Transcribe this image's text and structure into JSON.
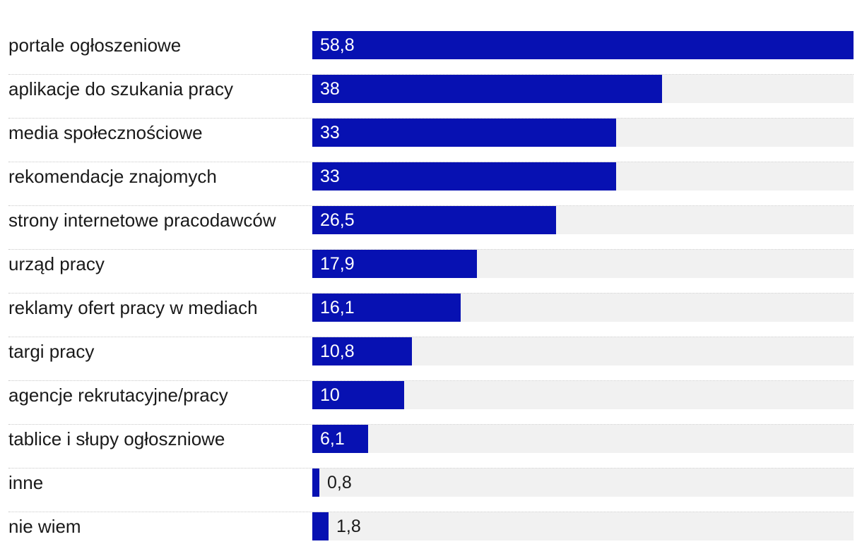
{
  "chart_data": {
    "type": "bar",
    "orientation": "horizontal",
    "categories": [
      "portale ogłoszeniowe",
      "aplikacje do szukania pracy",
      "media społecznościowe",
      "rekomendacje znajomych",
      "strony internetowe pracodawców",
      "urząd pracy",
      "reklamy ofert pracy w mediach",
      "targi pracy",
      "agencje rekrutacyjne/pracy",
      "tablice i słupy ogłoszniowe",
      "inne",
      "nie wiem"
    ],
    "values": [
      58.8,
      38,
      33,
      33,
      26.5,
      17.9,
      16.1,
      10.8,
      10,
      6.1,
      0.8,
      1.8
    ],
    "value_labels": [
      "58,8",
      "38",
      "33",
      "33",
      "26,5",
      "17,9",
      "16,1",
      "10,8",
      "10",
      "6,1",
      "0,8",
      "1,8"
    ],
    "xlim": [
      0,
      58.8
    ],
    "title": "",
    "xlabel": "",
    "ylabel": "",
    "grid": false,
    "colors": {
      "bar": "#0711b2",
      "track": "#f1f1f1",
      "divider": "#c8c8c8",
      "label_inside": "#ffffff",
      "label_outside": "#1a1a1a"
    }
  }
}
